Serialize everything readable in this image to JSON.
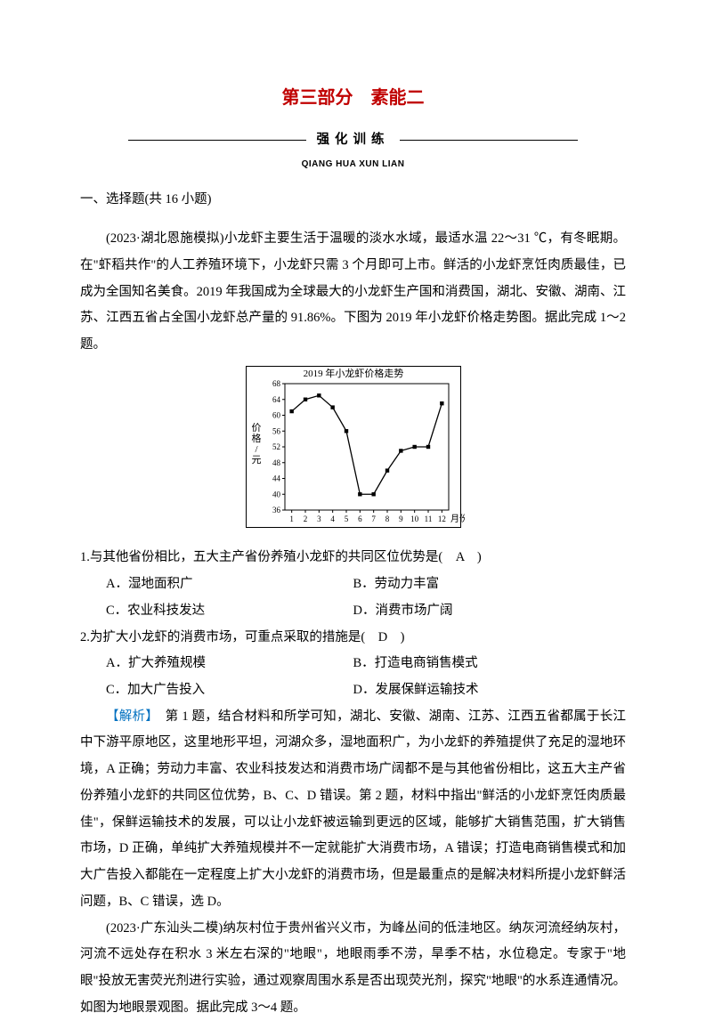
{
  "title": {
    "text": "第三部分　素能二",
    "color": "#c00000",
    "fontsize": 20
  },
  "divider": {
    "label": "强化训练",
    "pinyin": "QIANG HUA XUN LIAN"
  },
  "section1": "一、选择题(共 16 小题)",
  "intro1": "(2023·湖北恩施模拟)小龙虾主要生活于温暖的淡水水域，最适水温 22～31 ℃，有冬眠期。在\"虾稻共作\"的人工养殖环境下，小龙虾只需 3 个月即可上市。鲜活的小龙虾烹饪肉质最佳，已成为全国知名美食。2019 年我国成为全球最大的小龙虾生产国和消费国，湖北、安徽、湖南、江苏、江西五省占全国小龙虾总产量的 91.86%。下图为 2019 年小龙虾价格走势图。据此完成 1～2 题。",
  "chart": {
    "title": "2019 年小龙虾价格走势",
    "x_label": "月份",
    "y_label": "价格/元",
    "x_ticks": [
      1,
      2,
      3,
      4,
      5,
      6,
      7,
      8,
      9,
      10,
      11,
      12
    ],
    "y_ticks": [
      36,
      40,
      44,
      48,
      52,
      56,
      60,
      64,
      68
    ],
    "ylim": [
      36,
      68
    ],
    "xlim": [
      0.5,
      12.5
    ],
    "values": [
      61,
      64,
      65,
      62,
      56,
      40,
      40,
      46,
      51,
      52,
      52,
      63
    ],
    "line_color": "#000000",
    "marker_fill": "#000000",
    "background": "#ffffff",
    "border_color": "#000000",
    "tick_fontsize": 9,
    "title_fontsize": 11
  },
  "q1": {
    "stem": "1.与其他省份相比，五大主产省份养殖小龙虾的共同区位优势是(　A　)",
    "A": "A．湿地面积广",
    "B": "B．劳动力丰富",
    "C": "C．农业科技发达",
    "D": "D．消费市场广阔"
  },
  "q2": {
    "stem": "2.为扩大小龙虾的消费市场，可重点采取的措施是(　D　)",
    "A": "A．扩大养殖规模",
    "B": "B．打造电商销售模式",
    "C": "C．加大广告投入",
    "D": "D．发展保鲜运输技术"
  },
  "analysis_label": "【解析】",
  "analysis1": "　第 1 题，结合材料和所学可知，湖北、安徽、湖南、江苏、江西五省都属于长江中下游平原地区，这里地形平坦，河湖众多，湿地面积广，为小龙虾的养殖提供了充足的湿地环境，A 正确；劳动力丰富、农业科技发达和消费市场广阔都不是与其他省份相比，这五大主产省份养殖小龙虾的共同区位优势，B、C、D 错误。第 2 题，材料中指出\"鲜活的小龙虾烹饪肉质最佳\"，保鲜运输技术的发展，可以让小龙虾被运输到更远的区域，能够扩大销售范围，扩大销售市场，D 正确，单纯扩大养殖规模并不一定就能扩大消费市场，A 错误；打造电商销售模式和加大广告投入都能在一定程度上扩大小龙虾的消费市场，但是最重点的是解决材料所提小龙虾鲜活问题，B、C 错误，选 D。",
  "intro2": "(2023·广东汕头二模)纳灰村位于贵州省兴义市，为峰丛间的低洼地区。纳灰河流经纳灰村，河流不远处存在积水 3 米左右深的\"地眼\"，地眼雨季不涝，旱季不枯，水位稳定。专家于\"地眼\"投放无害荧光剂进行实验，通过观察周围水系是否出现荧光剂，探究\"地眼\"的水系连通情况。如图为地眼景观图。据此完成 3～4 题。"
}
